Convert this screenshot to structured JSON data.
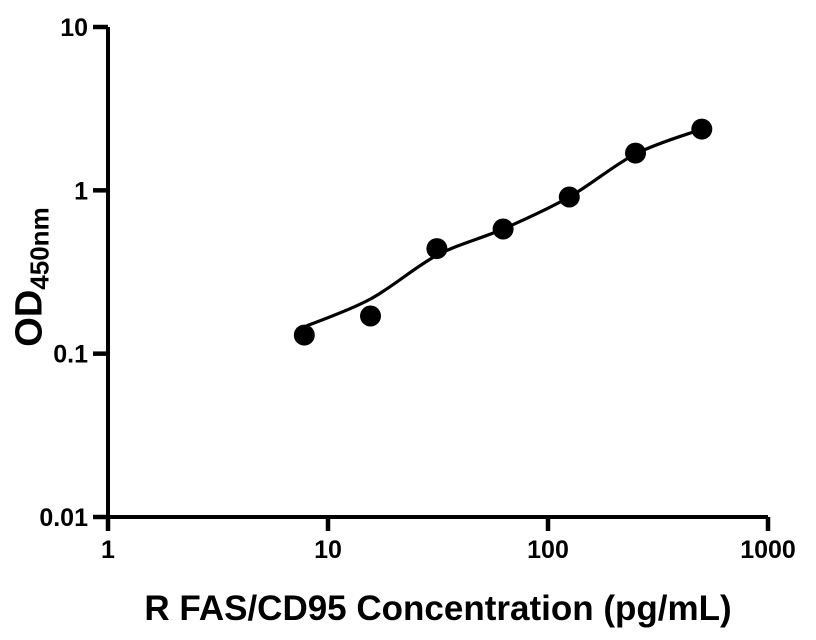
{
  "chart_data": {
    "type": "scatter",
    "title": "",
    "xlabel": "R FAS/CD95 Concentration (pg/mL)",
    "ylabel": "OD",
    "ylabel_subscript": "450nm",
    "x_scale": "log",
    "y_scale": "log",
    "xlim": [
      1,
      1000
    ],
    "ylim": [
      0.01,
      10
    ],
    "grid": false,
    "legend": null,
    "x_ticks": {
      "values": [
        1,
        10,
        100,
        1000
      ],
      "labels": [
        "1",
        "10",
        "100",
        "1000"
      ]
    },
    "y_ticks": {
      "values": [
        0.01,
        0.1,
        1,
        10
      ],
      "labels": [
        "0.01",
        "0.1",
        "1",
        "10"
      ]
    },
    "series": [
      {
        "name": "standard-curve-points",
        "marker": "filled-circle",
        "marker_radius": 10.5,
        "color": "#000000",
        "points": [
          {
            "x": 7.8,
            "y": 0.13
          },
          {
            "x": 15.6,
            "y": 0.17
          },
          {
            "x": 31.25,
            "y": 0.44
          },
          {
            "x": 62.5,
            "y": 0.58
          },
          {
            "x": 125,
            "y": 0.91
          },
          {
            "x": 250,
            "y": 1.69
          },
          {
            "x": 500,
            "y": 2.37
          }
        ]
      }
    ],
    "fit_curve": [
      {
        "x": 7.8,
        "y": 0.146
      },
      {
        "x": 15.6,
        "y": 0.216
      },
      {
        "x": 31.25,
        "y": 0.4
      },
      {
        "x": 62.5,
        "y": 0.58
      },
      {
        "x": 125,
        "y": 0.91
      },
      {
        "x": 250,
        "y": 1.67
      },
      {
        "x": 500,
        "y": 2.37
      }
    ],
    "colors": {
      "foreground": "#000000",
      "background": "#ffffff"
    }
  }
}
